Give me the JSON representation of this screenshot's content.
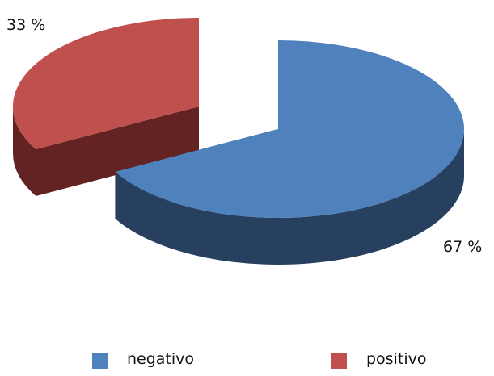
{
  "chart_data": {
    "type": "pie",
    "style": "3d-exploded",
    "slices": [
      {
        "name": "negativo",
        "value": 67,
        "label": "67 %",
        "color": "#4f81bd",
        "side_color": "#27405f"
      },
      {
        "name": "positivo",
        "value": 33,
        "label": "33 %",
        "color": "#c0504d",
        "side_color": "#632323"
      }
    ],
    "legend": {
      "placement": "bottom",
      "items": [
        "negativo",
        "positivo"
      ]
    }
  }
}
